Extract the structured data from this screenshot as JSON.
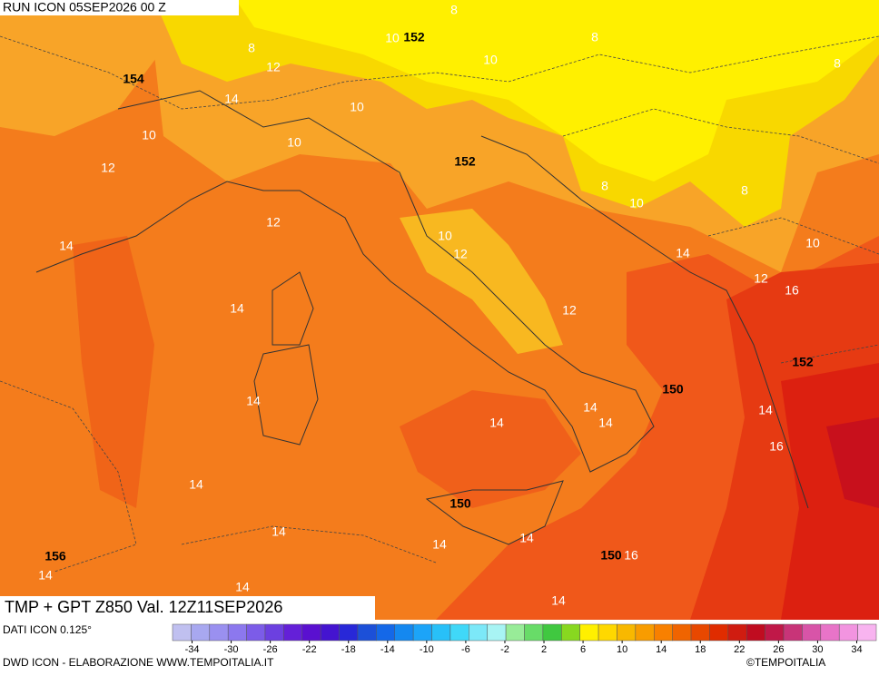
{
  "header": {
    "run": "RUN ICON 05SEP2026 00 Z"
  },
  "map": {
    "isotherm_labels": [
      8,
      8,
      10,
      10,
      8,
      8,
      12,
      14,
      10,
      10,
      10,
      12,
      8,
      10,
      8,
      12,
      14,
      10,
      12,
      14,
      10,
      12,
      16,
      14,
      12,
      14,
      14,
      14,
      14,
      14,
      16,
      14,
      14,
      14,
      14,
      16,
      14,
      14,
      14
    ],
    "gpt_labels": [
      152,
      154,
      152,
      150,
      152,
      150,
      150,
      156
    ]
  },
  "title": "TMP + GPT Z850 Val. 12Z11SEP2026",
  "colorbar": {
    "label": "DATI ICON 0.125°",
    "range": [
      -36,
      36
    ],
    "ticks": [
      -34,
      -30,
      -26,
      -22,
      -18,
      -14,
      -10,
      -6,
      -2,
      2,
      6,
      10,
      14,
      18,
      22,
      26,
      30,
      34
    ],
    "colors": [
      "#c0c0f0",
      "#a8a8f0",
      "#9a90f0",
      "#8c78ee",
      "#7c5ce8",
      "#6c40e0",
      "#6420d8",
      "#5a10d0",
      "#4414d0",
      "#2828d8",
      "#1c50d8",
      "#1468e8",
      "#1488f0",
      "#1ca4f8",
      "#28c0f8",
      "#40d8f8",
      "#7ce8f8",
      "#a8f4f4",
      "#98ec98",
      "#68dc68",
      "#40c840",
      "#88d820",
      "#fff000",
      "#ffd800",
      "#f8b800",
      "#f89c00",
      "#f88000",
      "#f06400",
      "#e84800",
      "#e02c00",
      "#d01c10",
      "#c00c20",
      "#c01848",
      "#c83478",
      "#d854a8",
      "#e874c8",
      "#f294e0",
      "#f8b4f0"
    ]
  },
  "footer": {
    "credit": "DWD ICON - ELABORAZIONE WWW.TEMPOITALIA.IT",
    "copyright": "©TEMPOITALIA"
  }
}
